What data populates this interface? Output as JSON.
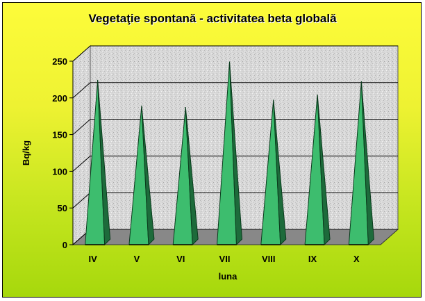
{
  "chart_data": {
    "type": "bar",
    "title": "Vegetaţie spontană - activitatea beta globală",
    "xlabel": "luna",
    "ylabel": "Bq/kg",
    "categories": [
      "IV",
      "V",
      "VI",
      "VII",
      "VIII",
      "IX",
      "X"
    ],
    "values": [
      215,
      180,
      178,
      240,
      188,
      195,
      213
    ],
    "ylim": [
      0,
      250
    ],
    "yticks": [
      "0",
      "50",
      "100",
      "150",
      "200",
      "250"
    ],
    "grid": true,
    "bar_shape": "pyramid",
    "colors": {
      "bar_light": "#3dbd6e",
      "bar_dark": "#1d6b3b",
      "bar_edge": "#0a3a1c",
      "wall": "#d4d4d4",
      "floor": "#888888",
      "background_top": "#fdfc3a",
      "background_bottom": "#a6d80c"
    }
  }
}
